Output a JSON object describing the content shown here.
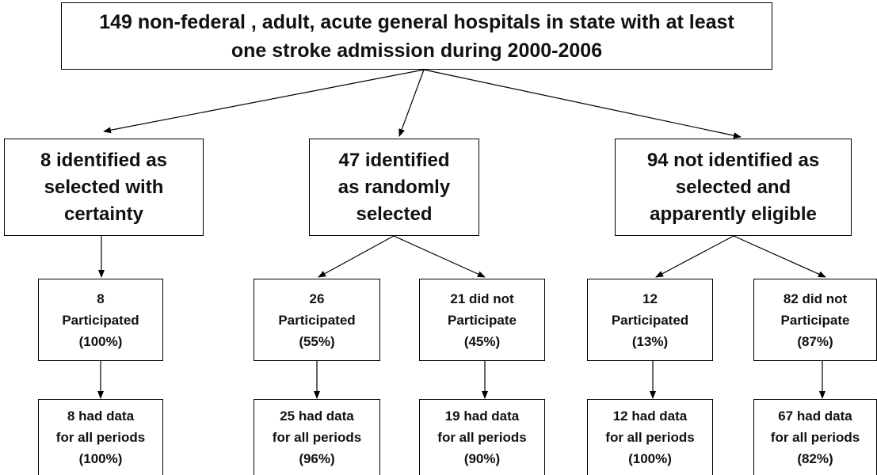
{
  "nodes": [
    {
      "lines": [
        "149 non-federal , adult, acute general hospitals in state with at least",
        "one stroke admission during 2000-2006"
      ]
    },
    {
      "lines": [
        "8 identified as",
        "selected with",
        "certainty"
      ]
    },
    {
      "lines": [
        "47 identified",
        "as randomly",
        "selected"
      ]
    },
    {
      "lines": [
        "94  not identified as",
        "selected and",
        "apparently eligible"
      ]
    },
    {
      "lines": [
        "8",
        "Participated",
        "(100%)"
      ]
    },
    {
      "lines": [
        "26",
        "Participated",
        "(55%)"
      ]
    },
    {
      "lines": [
        "21 did not",
        "Participate",
        "(45%)"
      ]
    },
    {
      "lines": [
        "12",
        "Participated",
        "(13%)"
      ]
    },
    {
      "lines": [
        "82 did not",
        "Participate",
        "(87%)"
      ]
    },
    {
      "lines": [
        "8  had data",
        "for all periods",
        "(100%)"
      ]
    },
    {
      "lines": [
        "25 had data",
        "for all periods",
        "(96%)"
      ]
    },
    {
      "lines": [
        "19 had data",
        "for all periods",
        "(90%)"
      ]
    },
    {
      "lines": [
        "12 had data",
        "for all periods",
        "(100%)"
      ]
    },
    {
      "lines": [
        "67 had data",
        "for all periods",
        "(82%)"
      ]
    }
  ]
}
